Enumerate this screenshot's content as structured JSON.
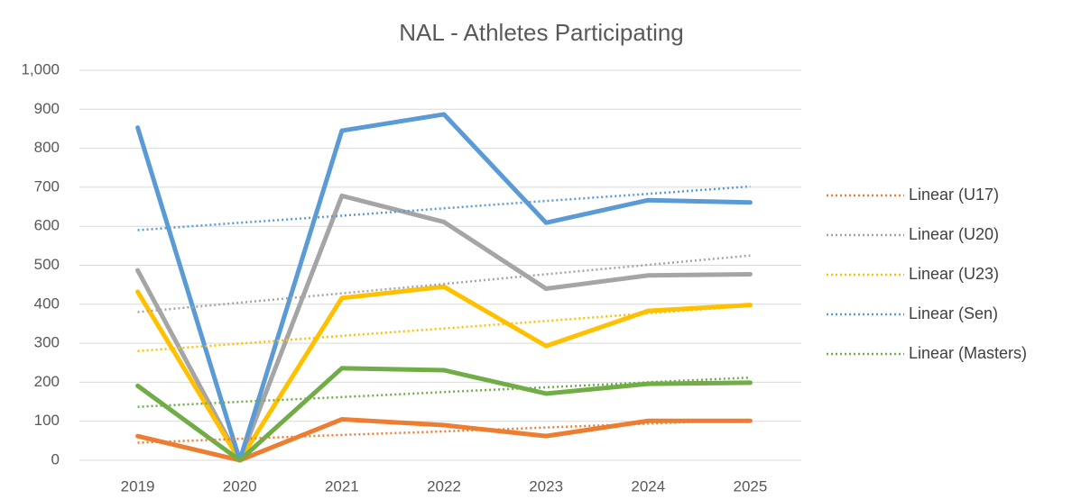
{
  "chart_data": {
    "type": "line",
    "title": "NAL - Athletes Participating",
    "categories": [
      "2019",
      "2020",
      "2021",
      "2022",
      "2023",
      "2024",
      "2025"
    ],
    "series": [
      {
        "color": "#ED7D31",
        "style": "solid",
        "values": [
          62,
          0,
          105,
          90,
          62,
          101,
          101
        ]
      },
      {
        "color": "#A5A5A5",
        "style": "solid",
        "values": [
          487,
          0,
          678,
          611,
          440,
          474,
          477
        ]
      },
      {
        "color": "#FFC000",
        "style": "solid",
        "values": [
          432,
          0,
          416,
          445,
          293,
          383,
          398
        ]
      },
      {
        "color": "#5B9BD5",
        "style": "solid",
        "values": [
          853,
          0,
          845,
          887,
          609,
          667,
          661
        ]
      },
      {
        "color": "#70AD47",
        "style": "solid",
        "values": [
          191,
          0,
          236,
          231,
          171,
          196,
          199
        ]
      },
      {
        "name": "Linear (U17)",
        "color": "#ED7D31",
        "style": "dotted",
        "values": [
          45,
          55,
          65,
          74,
          84,
          94,
          104
        ]
      },
      {
        "name": "Linear (U20)",
        "color": "#A5A5A5",
        "style": "dotted",
        "values": [
          380,
          404,
          428,
          452,
          477,
          501,
          525
        ]
      },
      {
        "name": "Linear (U23)",
        "color": "#FFC000",
        "style": "dotted",
        "values": [
          280,
          299,
          319,
          338,
          357,
          377,
          396
        ]
      },
      {
        "name": "Linear (Sen)",
        "color": "#5B9BD5",
        "style": "dotted",
        "values": [
          590,
          609,
          627,
          646,
          665,
          683,
          702
        ]
      },
      {
        "name": "Linear (Masters)",
        "color": "#70AD47",
        "style": "dotted",
        "values": [
          137,
          150,
          162,
          175,
          187,
          200,
          212
        ]
      }
    ],
    "ylim": [
      0,
      1000
    ],
    "yticks": [
      0,
      100,
      200,
      300,
      400,
      500,
      600,
      700,
      800,
      900,
      {
        "value": 1000,
        "label": "1,000"
      }
    ],
    "grid": true,
    "legend": "right"
  }
}
